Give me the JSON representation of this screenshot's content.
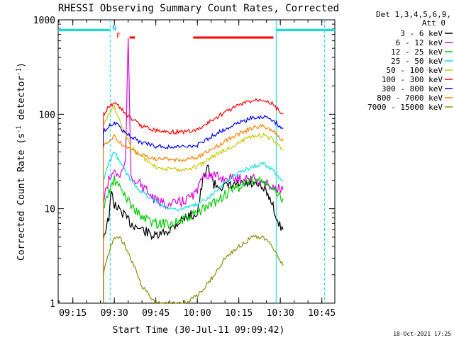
{
  "chart_data": {
    "type": "line",
    "title": "RHESSI Observing Summary Count Rates, Corrected",
    "ylabel": "Corrected Count Rate (s",
    "ylabel_exp": "-1",
    "ylabel_mid": " detector",
    "ylabel_end": ")",
    "xlabel": "Start Time (30-Jul-11 09:09:42)",
    "timestamp": "18-Oct-2021 17:25",
    "y_scale": "log",
    "ylim": [
      1,
      1000
    ],
    "xlim": [
      "09:09:42",
      "10:49:42"
    ],
    "y_ticks": [
      {
        "value": 1,
        "label": "1"
      },
      {
        "value": 10,
        "label": "10"
      },
      {
        "value": 100,
        "label": "100"
      },
      {
        "value": 1000,
        "label": "1000"
      }
    ],
    "x_ticks": [
      {
        "value": "09:15",
        "label": "09:15"
      },
      {
        "value": "09:30",
        "label": "09:30"
      },
      {
        "value": "09:45",
        "label": "09:45"
      },
      {
        "value": "10:00",
        "label": "10:00"
      },
      {
        "value": "10:15",
        "label": "10:15"
      },
      {
        "value": "10:30",
        "label": "10:30"
      },
      {
        "value": "10:45",
        "label": "10:45"
      }
    ],
    "legend_header": [
      "Det 1,3,4,5,6,9,",
      "Att 0"
    ],
    "legend_position": "right",
    "series": [
      {
        "name": "3 - 6 keV",
        "color": "#000000",
        "points": [
          [
            "09:26",
            5
          ],
          [
            "09:28",
            8
          ],
          [
            "09:29",
            15
          ],
          [
            "09:30",
            11
          ],
          [
            "09:33",
            9
          ],
          [
            "09:36",
            7
          ],
          [
            "09:40",
            6
          ],
          [
            "09:45",
            5
          ],
          [
            "09:50",
            6
          ],
          [
            "09:55",
            8
          ],
          [
            "10:00",
            9
          ],
          [
            "10:02",
            20
          ],
          [
            "10:04",
            28
          ],
          [
            "10:06",
            18
          ],
          [
            "10:10",
            17
          ],
          [
            "10:15",
            18
          ],
          [
            "10:20",
            18
          ],
          [
            "10:24",
            16
          ],
          [
            "10:27",
            12
          ],
          [
            "10:29",
            7
          ],
          [
            "10:31",
            6
          ]
        ]
      },
      {
        "name": "6 - 12 keV",
        "color": "#e000e0",
        "points": [
          [
            "09:26",
            12
          ],
          [
            "09:28",
            20
          ],
          [
            "09:30",
            25
          ],
          [
            "09:32",
            22
          ],
          [
            "09:34",
            30
          ],
          [
            "09:35",
            620
          ],
          [
            "09:36",
            22
          ],
          [
            "09:38",
            20
          ],
          [
            "09:42",
            15
          ],
          [
            "09:45",
            12
          ],
          [
            "09:50",
            11
          ],
          [
            "09:55",
            12
          ],
          [
            "10:00",
            15
          ],
          [
            "10:02",
            24
          ],
          [
            "10:05",
            22
          ],
          [
            "10:10",
            21
          ],
          [
            "10:15",
            21
          ],
          [
            "10:20",
            21
          ],
          [
            "10:24",
            19
          ],
          [
            "10:27",
            17
          ],
          [
            "10:31",
            16
          ]
        ]
      },
      {
        "name": "12 - 25 keV",
        "color": "#00cc00",
        "points": [
          [
            "09:26",
            10
          ],
          [
            "09:28",
            15
          ],
          [
            "09:30",
            20
          ],
          [
            "09:33",
            15
          ],
          [
            "09:36",
            11
          ],
          [
            "09:40",
            8
          ],
          [
            "09:45",
            7
          ],
          [
            "09:50",
            7
          ],
          [
            "09:55",
            7.5
          ],
          [
            "10:00",
            9
          ],
          [
            "10:05",
            11
          ],
          [
            "10:10",
            14
          ],
          [
            "10:15",
            17
          ],
          [
            "10:20",
            20
          ],
          [
            "10:24",
            19
          ],
          [
            "10:27",
            16
          ],
          [
            "10:31",
            13
          ]
        ]
      },
      {
        "name": "25 - 50 keV",
        "color": "#00e0e0",
        "points": [
          [
            "09:26",
            20
          ],
          [
            "09:28",
            30
          ],
          [
            "09:30",
            40
          ],
          [
            "09:33",
            28
          ],
          [
            "09:36",
            20
          ],
          [
            "09:40",
            15
          ],
          [
            "09:45",
            12
          ],
          [
            "09:50",
            10
          ],
          [
            "09:55",
            10
          ],
          [
            "10:00",
            11
          ],
          [
            "10:05",
            14
          ],
          [
            "10:10",
            19
          ],
          [
            "10:15",
            24
          ],
          [
            "10:20",
            28
          ],
          [
            "10:24",
            30
          ],
          [
            "10:27",
            26
          ],
          [
            "10:31",
            20
          ]
        ]
      },
      {
        "name": "50 - 100 keV",
        "color": "#c8c800",
        "points": [
          [
            "09:26",
            80
          ],
          [
            "09:28",
            100
          ],
          [
            "09:30",
            120
          ],
          [
            "09:33",
            70
          ],
          [
            "09:36",
            45
          ],
          [
            "09:40",
            35
          ],
          [
            "09:45",
            28
          ],
          [
            "09:50",
            26
          ],
          [
            "09:55",
            26
          ],
          [
            "10:00",
            28
          ],
          [
            "10:05",
            35
          ],
          [
            "10:10",
            42
          ],
          [
            "10:15",
            50
          ],
          [
            "10:20",
            58
          ],
          [
            "10:24",
            60
          ],
          [
            "10:27",
            55
          ],
          [
            "10:31",
            42
          ]
        ]
      },
      {
        "name": "100 - 300 keV",
        "color": "#ff0000",
        "points": [
          [
            "09:26",
            100
          ],
          [
            "09:28",
            120
          ],
          [
            "09:30",
            135
          ],
          [
            "09:33",
            110
          ],
          [
            "09:36",
            90
          ],
          [
            "09:40",
            75
          ],
          [
            "09:45",
            68
          ],
          [
            "09:50",
            65
          ],
          [
            "09:55",
            65
          ],
          [
            "10:00",
            68
          ],
          [
            "10:05",
            85
          ],
          [
            "10:10",
            105
          ],
          [
            "10:15",
            125
          ],
          [
            "10:20",
            140
          ],
          [
            "10:24",
            145
          ],
          [
            "10:27",
            130
          ],
          [
            "10:31",
            100
          ]
        ]
      },
      {
        "name": "300 - 800 keV",
        "color": "#0000ff",
        "points": [
          [
            "09:26",
            65
          ],
          [
            "09:28",
            75
          ],
          [
            "09:30",
            82
          ],
          [
            "09:33",
            68
          ],
          [
            "09:36",
            58
          ],
          [
            "09:40",
            50
          ],
          [
            "09:45",
            46
          ],
          [
            "09:50",
            45
          ],
          [
            "09:55",
            45
          ],
          [
            "10:00",
            47
          ],
          [
            "10:05",
            58
          ],
          [
            "10:10",
            70
          ],
          [
            "10:15",
            82
          ],
          [
            "10:20",
            92
          ],
          [
            "10:24",
            95
          ],
          [
            "10:27",
            88
          ],
          [
            "10:31",
            70
          ]
        ]
      },
      {
        "name": "800 - 7000 keV",
        "color": "#ff8000",
        "points": [
          [
            "09:26",
            45
          ],
          [
            "09:28",
            52
          ],
          [
            "09:30",
            58
          ],
          [
            "09:33",
            48
          ],
          [
            "09:36",
            42
          ],
          [
            "09:40",
            37
          ],
          [
            "09:45",
            34
          ],
          [
            "09:50",
            33
          ],
          [
            "09:55",
            33
          ],
          [
            "10:00",
            35
          ],
          [
            "10:05",
            42
          ],
          [
            "10:10",
            52
          ],
          [
            "10:15",
            62
          ],
          [
            "10:20",
            72
          ],
          [
            "10:24",
            75
          ],
          [
            "10:27",
            68
          ],
          [
            "10:31",
            52
          ]
        ]
      },
      {
        "name": "7000 - 15000 keV",
        "color": "#8c8c00",
        "points": [
          [
            "09:26",
            2
          ],
          [
            "09:28",
            3.5
          ],
          [
            "09:30",
            5
          ],
          [
            "09:32",
            5
          ],
          [
            "09:34",
            4
          ],
          [
            "09:37",
            2.5
          ],
          [
            "09:40",
            1.5
          ],
          [
            "09:45",
            1
          ],
          [
            "09:50",
            1
          ],
          [
            "09:55",
            1
          ],
          [
            "10:00",
            1.2
          ],
          [
            "10:05",
            1.8
          ],
          [
            "10:10",
            3
          ],
          [
            "10:15",
            4
          ],
          [
            "10:20",
            5
          ],
          [
            "10:24",
            5
          ],
          [
            "10:27",
            4
          ],
          [
            "10:31",
            2.5
          ]
        ]
      }
    ],
    "annotations": [
      {
        "type": "flag-bar",
        "color": "#00e0e0",
        "x_start": "09:09:42",
        "x_end": "09:28:30",
        "y": 780
      },
      {
        "type": "flag-bar",
        "color": "#00e0e0",
        "x_start": "10:28:30",
        "x_end": "10:49:42",
        "y": 780
      },
      {
        "type": "flag-bar",
        "color": "#ff0000",
        "x_start": "09:35:30",
        "x_end": "09:37:30",
        "y": 650
      },
      {
        "type": "flag-bar",
        "color": "#ff0000",
        "x_start": "09:58:30",
        "x_end": "10:27:30",
        "y": 650
      },
      {
        "type": "vline",
        "color": "#00e0e0",
        "x": "09:28:30",
        "dashed": true
      },
      {
        "type": "vline",
        "color": "#00e0e0",
        "x": "10:28:30",
        "dashed": false
      },
      {
        "type": "vline",
        "color": "#00e0e0",
        "x": "10:46:00",
        "dashed": true
      },
      {
        "type": "label",
        "text": "N",
        "color": "#00a0ff",
        "x": "09:30:00",
        "y": 830
      },
      {
        "type": "label",
        "text": "F",
        "color": "#ff0000",
        "x": "09:31:30",
        "y": 690
      }
    ]
  }
}
